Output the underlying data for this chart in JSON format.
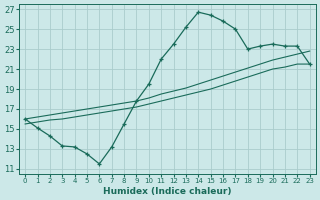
{
  "xlabel": "Humidex (Indice chaleur)",
  "xlim": [
    -0.5,
    23.5
  ],
  "ylim": [
    10.5,
    27.5
  ],
  "xticks": [
    0,
    1,
    2,
    3,
    4,
    5,
    6,
    7,
    8,
    9,
    10,
    11,
    12,
    13,
    14,
    15,
    16,
    17,
    18,
    19,
    20,
    21,
    22,
    23
  ],
  "yticks": [
    11,
    13,
    15,
    17,
    19,
    21,
    23,
    25,
    27
  ],
  "background_color": "#cce8e8",
  "grid_color": "#aacccc",
  "line_color": "#1a6b5a",
  "line1_x": [
    0,
    1,
    2,
    3,
    4,
    5,
    6,
    7,
    8,
    9,
    10,
    11,
    12,
    13,
    14,
    15,
    16,
    17,
    18,
    19,
    20,
    21,
    22,
    23
  ],
  "line1_y": [
    16.0,
    15.1,
    14.3,
    13.3,
    13.2,
    12.5,
    11.5,
    13.2,
    15.5,
    17.8,
    19.5,
    22.0,
    23.5,
    25.2,
    26.7,
    26.4,
    25.8,
    25.0,
    23.0,
    23.3,
    23.5,
    23.3,
    23.3,
    21.5
  ],
  "line2_x": [
    0,
    1,
    2,
    3,
    4,
    5,
    6,
    7,
    8,
    9,
    10,
    11,
    12,
    13,
    14,
    15,
    16,
    17,
    18,
    19,
    20,
    21,
    22,
    23
  ],
  "line2_y": [
    15.5,
    15.7,
    15.9,
    16.0,
    16.2,
    16.4,
    16.6,
    16.8,
    17.0,
    17.2,
    17.5,
    17.8,
    18.1,
    18.4,
    18.7,
    19.0,
    19.4,
    19.8,
    20.2,
    20.6,
    21.0,
    21.2,
    21.5,
    21.5
  ],
  "line3_x": [
    0,
    1,
    2,
    3,
    4,
    5,
    6,
    7,
    8,
    9,
    10,
    11,
    12,
    13,
    14,
    15,
    16,
    17,
    18,
    19,
    20,
    21,
    22,
    23
  ],
  "line3_y": [
    16.0,
    16.2,
    16.4,
    16.6,
    16.8,
    17.0,
    17.2,
    17.4,
    17.6,
    17.8,
    18.1,
    18.5,
    18.8,
    19.1,
    19.5,
    19.9,
    20.3,
    20.7,
    21.1,
    21.5,
    21.9,
    22.2,
    22.5,
    22.8
  ]
}
